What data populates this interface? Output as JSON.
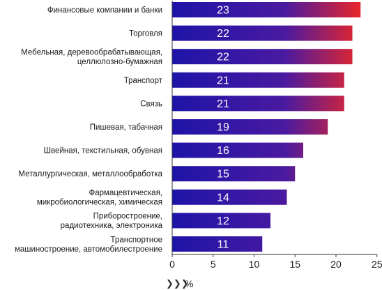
{
  "chart_data": {
    "type": "bar",
    "orientation": "horizontal",
    "categories": [
      "Финансовые компании и банки",
      "Торговля",
      "Мебельная, деревообрабатывающая,\nцеллюлозно-бумажная",
      "Транспорт",
      "Связь",
      "Пишевая, табачная",
      "Швейная, текстильная, обувная",
      "Металлургическая, металлообработка",
      "Фармацевтическая,\nмикробиологическая, химическая",
      "Приборостроение,\nрадиотехника, электроника",
      "Транспортное\nмашиностроение, автомобилестроение"
    ],
    "values": [
      23,
      22,
      22,
      21,
      21,
      19,
      16,
      15,
      14,
      12,
      11
    ],
    "value_labels": [
      "23",
      "22",
      "22",
      "21",
      "21",
      "19",
      "16",
      "15",
      "14",
      "12",
      "11"
    ],
    "xlim": [
      0,
      25
    ],
    "x_ticks": [
      0,
      5,
      10,
      15,
      20,
      25
    ],
    "x_tick_labels": [
      "0",
      "5",
      "10",
      "15",
      "20",
      "25"
    ],
    "xlabel": "%",
    "xlabel_icon": "triple-chevron-right-icon",
    "grid": false,
    "colors": {
      "bar_start": "#1e14a8",
      "bar_end": "#e8262a",
      "axis": "#333333"
    }
  }
}
